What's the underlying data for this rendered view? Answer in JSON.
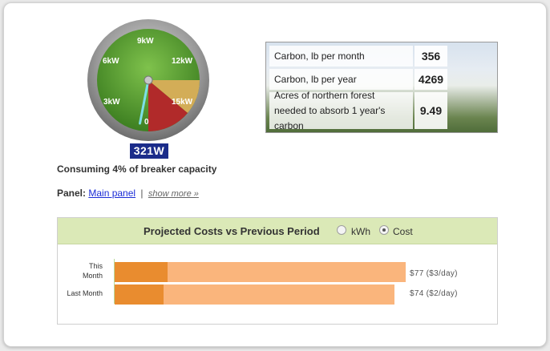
{
  "gauge": {
    "ticks": [
      "0",
      "3kW",
      "6kW",
      "9kW",
      "12kW",
      "15kW"
    ],
    "current_watts": "321W",
    "needle_fraction": 0.02,
    "colors": {
      "normal": "#4f9a2c",
      "warning": "#d3ad57",
      "danger": "#b12a2a",
      "bezel": "#8f8f8f",
      "needle": "#7ce0e8"
    }
  },
  "consuming": "Consuming 4% of breaker capacity",
  "panel": {
    "label": "Panel:",
    "name": "Main panel",
    "separator": "|",
    "more": "show more »"
  },
  "carbon": {
    "rows": [
      {
        "label": "Carbon, lb per month",
        "value": "356"
      },
      {
        "label": "Carbon, lb per year",
        "value": "4269"
      },
      {
        "label": "Acres of northern forest needed to absorb 1 year's carbon",
        "value": "9.49"
      }
    ]
  },
  "projected": {
    "title": "Projected Costs vs Previous Period",
    "options": [
      {
        "label": "kWh",
        "selected": false
      },
      {
        "label": "Cost",
        "selected": true
      }
    ],
    "bars": [
      {
        "label": "This Month",
        "value_text": "$77 ($3/day)",
        "projected": 77,
        "to_date": 14
      },
      {
        "label": "Last Month",
        "value_text": "$74 ($2/day)",
        "projected": 74,
        "to_date": 13
      }
    ]
  }
}
